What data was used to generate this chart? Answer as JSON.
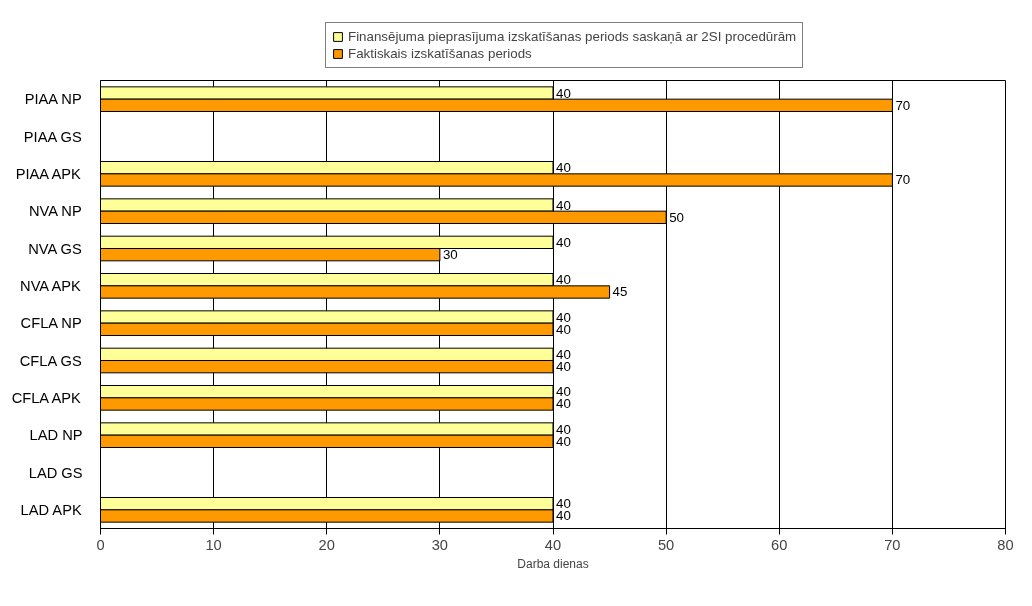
{
  "chart_data": {
    "type": "bar",
    "orientation": "horizontal",
    "xlabel": "Darba dienas",
    "categories": [
      "PIAA NP",
      "PIAA GS",
      "PIAA APK",
      "NVA NP",
      "NVA GS",
      "NVA APK",
      "CFLA NP",
      "CFLA GS",
      "CFLA APK",
      "LAD NP",
      "LAD GS",
      "LAD APK"
    ],
    "series": [
      {
        "name": "Finansējuma pieprasījuma izskatīšanas periods saskaņā ar 2SI procedūrām",
        "color": "#ffff99",
        "values": [
          40,
          null,
          40,
          40,
          40,
          40,
          40,
          40,
          40,
          40,
          null,
          40
        ]
      },
      {
        "name": "Faktiskais izskatīšanas periods",
        "color": "#ff9900",
        "values": [
          70,
          null,
          70,
          50,
          30,
          45,
          40,
          40,
          40,
          40,
          null,
          40
        ]
      }
    ],
    "xlim": [
      0,
      80
    ],
    "xticks": [
      0,
      10,
      20,
      30,
      40,
      50,
      60,
      70,
      80
    ],
    "grid": "x",
    "legend": "top",
    "data_labels": true
  }
}
